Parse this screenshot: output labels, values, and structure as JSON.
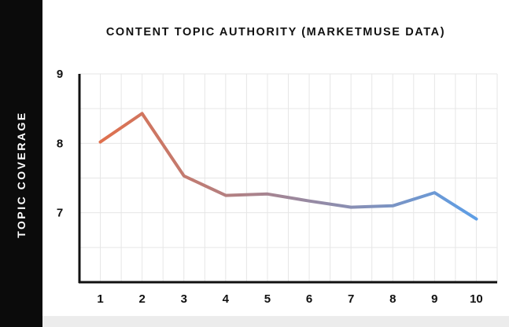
{
  "chart_data": {
    "type": "line",
    "title": "CONTENT TOPIC AUTHORITY (MARKETMUSE DATA)",
    "xlabel": "",
    "ylabel": "TOPIC COVERAGE",
    "x": [
      1,
      2,
      3,
      4,
      5,
      6,
      7,
      8,
      9,
      10
    ],
    "y": [
      8.02,
      8.43,
      7.53,
      7.25,
      7.27,
      7.17,
      7.08,
      7.1,
      7.29,
      6.91
    ],
    "xticks": [
      "1",
      "2",
      "3",
      "4",
      "5",
      "6",
      "7",
      "8",
      "9",
      "10"
    ],
    "yticks": [
      "7",
      "8",
      "9"
    ],
    "ylim": [
      6,
      9
    ],
    "grid": true,
    "line_gradient": [
      "#e0704d",
      "#5d9ee6"
    ],
    "grid_color": "#e6e6e6",
    "axis_color": "#111111"
  }
}
